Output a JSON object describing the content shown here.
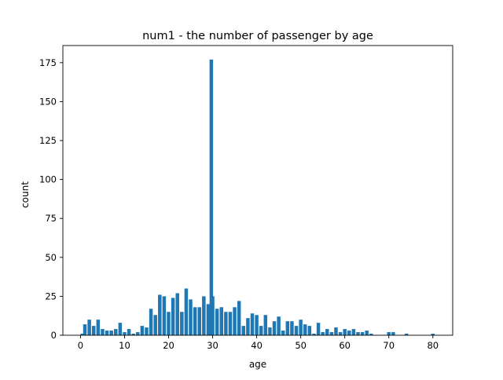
{
  "chart_data": {
    "type": "bar",
    "title": "num1 - the number of passenger by age",
    "xlabel": "age",
    "ylabel": "count",
    "xlim": [
      -4.0,
      84.5
    ],
    "ylim": [
      0,
      186
    ],
    "xticks": [
      0,
      10,
      20,
      30,
      40,
      50,
      60,
      70,
      80
    ],
    "yticks": [
      0,
      25,
      50,
      75,
      100,
      125,
      150,
      175
    ],
    "grid": false,
    "bar_color": "#1f77b4",
    "bars": [
      {
        "x": 0.4,
        "y": 1
      },
      {
        "x": 0.7,
        "y": 1
      },
      {
        "x": 0.9,
        "y": 1
      },
      {
        "x": 1,
        "y": 7
      },
      {
        "x": 2,
        "y": 10
      },
      {
        "x": 3,
        "y": 6
      },
      {
        "x": 4,
        "y": 10
      },
      {
        "x": 5,
        "y": 4
      },
      {
        "x": 6,
        "y": 3
      },
      {
        "x": 7,
        "y": 3
      },
      {
        "x": 8,
        "y": 4
      },
      {
        "x": 9,
        "y": 8
      },
      {
        "x": 10,
        "y": 2
      },
      {
        "x": 11,
        "y": 4
      },
      {
        "x": 12,
        "y": 1
      },
      {
        "x": 13,
        "y": 2
      },
      {
        "x": 14,
        "y": 6
      },
      {
        "x": 15,
        "y": 5
      },
      {
        "x": 16,
        "y": 17
      },
      {
        "x": 17,
        "y": 13
      },
      {
        "x": 18,
        "y": 26
      },
      {
        "x": 19,
        "y": 25
      },
      {
        "x": 20,
        "y": 15
      },
      {
        "x": 21,
        "y": 24
      },
      {
        "x": 22,
        "y": 27
      },
      {
        "x": 23,
        "y": 15
      },
      {
        "x": 24,
        "y": 30
      },
      {
        "x": 25,
        "y": 23
      },
      {
        "x": 26,
        "y": 18
      },
      {
        "x": 27,
        "y": 18
      },
      {
        "x": 28,
        "y": 25
      },
      {
        "x": 29,
        "y": 20
      },
      {
        "x": 29.7,
        "y": 177
      },
      {
        "x": 30,
        "y": 25
      },
      {
        "x": 31,
        "y": 17
      },
      {
        "x": 32,
        "y": 18
      },
      {
        "x": 33,
        "y": 15
      },
      {
        "x": 34,
        "y": 15
      },
      {
        "x": 35,
        "y": 18
      },
      {
        "x": 36,
        "y": 22
      },
      {
        "x": 37,
        "y": 6
      },
      {
        "x": 38,
        "y": 11
      },
      {
        "x": 39,
        "y": 14
      },
      {
        "x": 40,
        "y": 13
      },
      {
        "x": 41,
        "y": 6
      },
      {
        "x": 42,
        "y": 13
      },
      {
        "x": 43,
        "y": 5
      },
      {
        "x": 44,
        "y": 9
      },
      {
        "x": 45,
        "y": 12
      },
      {
        "x": 46,
        "y": 3
      },
      {
        "x": 47,
        "y": 9
      },
      {
        "x": 48,
        "y": 9
      },
      {
        "x": 49,
        "y": 6
      },
      {
        "x": 50,
        "y": 10
      },
      {
        "x": 51,
        "y": 7
      },
      {
        "x": 52,
        "y": 6
      },
      {
        "x": 53,
        "y": 1
      },
      {
        "x": 54,
        "y": 8
      },
      {
        "x": 55,
        "y": 2
      },
      {
        "x": 56,
        "y": 4
      },
      {
        "x": 57,
        "y": 2
      },
      {
        "x": 58,
        "y": 5
      },
      {
        "x": 59,
        "y": 2
      },
      {
        "x": 60,
        "y": 4
      },
      {
        "x": 61,
        "y": 3
      },
      {
        "x": 62,
        "y": 4
      },
      {
        "x": 63,
        "y": 2
      },
      {
        "x": 64,
        "y": 2
      },
      {
        "x": 65,
        "y": 3
      },
      {
        "x": 66,
        "y": 1
      },
      {
        "x": 70,
        "y": 2
      },
      {
        "x": 71,
        "y": 2
      },
      {
        "x": 74,
        "y": 1
      },
      {
        "x": 80,
        "y": 1
      }
    ]
  }
}
